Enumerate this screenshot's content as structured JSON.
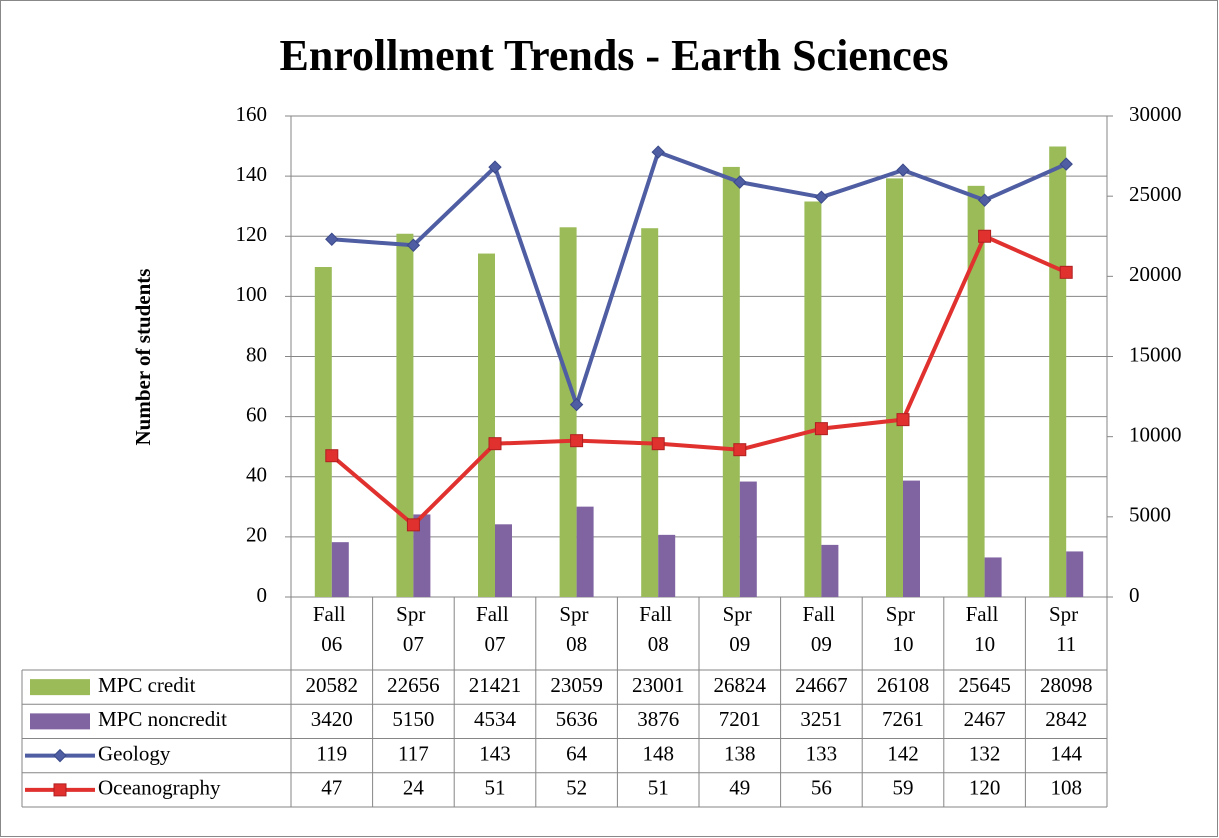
{
  "chart_data": {
    "type": "bar-line-table",
    "title": "Enrollment Trends - Earth Sciences",
    "y_label": "Number of students",
    "categories": [
      "Fall 06",
      "Spr 07",
      "Fall 07",
      "Spr 08",
      "Fall 08",
      "Spr 09",
      "Fall 09",
      "Spr 10",
      "Fall 10",
      "Spr 11"
    ],
    "series": [
      {
        "name": "MPC credit",
        "type": "bar",
        "axis": "y2",
        "color": "#9bbb59",
        "values": [
          20582,
          22656,
          21421,
          23059,
          23001,
          26824,
          24667,
          26108,
          25645,
          28098
        ]
      },
      {
        "name": "MPC noncredit",
        "type": "bar",
        "axis": "y2",
        "color": "#8064a2",
        "values": [
          3420,
          5150,
          4534,
          5636,
          3876,
          7201,
          3251,
          7261,
          2467,
          2842
        ]
      },
      {
        "name": "Geology",
        "type": "line",
        "marker": "diamond",
        "color": "#4f5da3",
        "values": [
          119,
          117,
          143,
          64,
          148,
          138,
          133,
          142,
          132,
          144
        ]
      },
      {
        "name": "Oceanography",
        "type": "line",
        "marker": "square",
        "color": "#e0312f",
        "values": [
          47,
          24,
          51,
          52,
          51,
          49,
          56,
          59,
          120,
          108
        ]
      }
    ],
    "ylim": [
      0,
      160
    ],
    "yticks": [
      0,
      20,
      40,
      60,
      80,
      100,
      120,
      140,
      160
    ],
    "y2lim": [
      0,
      30000
    ],
    "y2ticks": [
      0,
      5000,
      10000,
      15000,
      20000,
      25000,
      30000
    ],
    "grid": true
  }
}
